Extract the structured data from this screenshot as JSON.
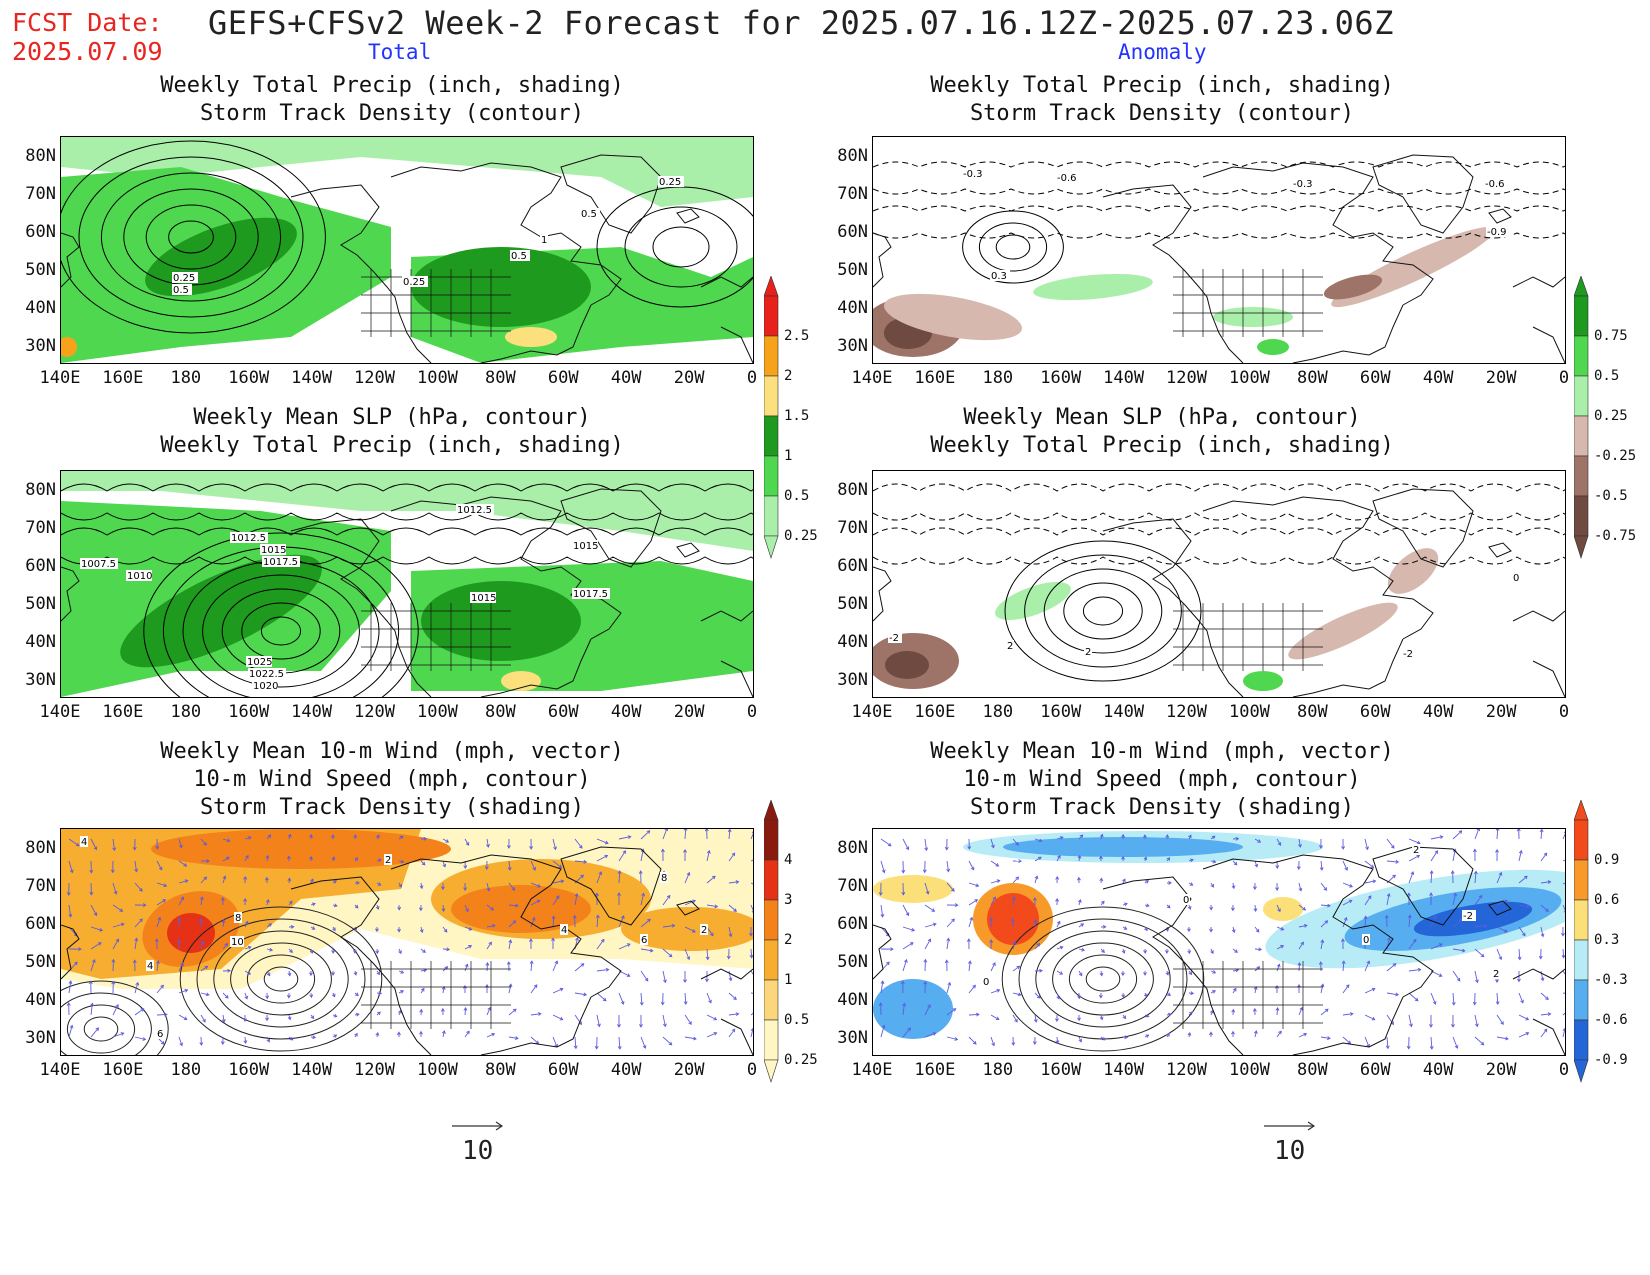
{
  "header": {
    "fcst_label": "FCST Date:",
    "fcst_date": "2025.07.09",
    "title": "GEFS+CFSv2 Week-2 Forecast for 2025.07.16.12Z-2025.07.23.06Z",
    "col_total": "Total",
    "col_anomaly": "Anomaly"
  },
  "axes": {
    "lat_labels": [
      "80N",
      "70N",
      "60N",
      "50N",
      "40N",
      "30N"
    ],
    "lon_labels": [
      "140E",
      "160E",
      "180",
      "160W",
      "140W",
      "120W",
      "100W",
      "80W",
      "60W",
      "40W",
      "20W",
      "0"
    ]
  },
  "panels": {
    "row1": {
      "line1": "Weekly Total Precip (inch, shading)",
      "line2": "Storm Track Density (contour)"
    },
    "row2": {
      "line1": "Weekly Mean SLP (hPa, contour)",
      "line2": "Weekly Total Precip (inch, shading)"
    },
    "row3": {
      "line1": "Weekly Mean 10-m Wind (mph, vector)",
      "line2": "10-m Wind Speed (mph, contour)",
      "line3": "Storm Track Density (shading)"
    }
  },
  "colorbars": {
    "precip_total": {
      "labels": [
        "2.5",
        "2",
        "1.5",
        "1",
        "0.5",
        "0.25"
      ],
      "colors": [
        "#e8211a",
        "#f7a21b",
        "#fbe07d",
        "#1e9a1e",
        "#4fd84f",
        "#a9eea9"
      ]
    },
    "precip_anom": {
      "labels": [
        "0.75",
        "0.5",
        "0.25",
        "-0.25",
        "-0.5",
        "-0.75"
      ],
      "colors": [
        "#1e9a1e",
        "#4fd84f",
        "#a9eea9",
        "#d6b8ae",
        "#9e7468",
        "#6e4a40"
      ]
    },
    "storm_total": {
      "labels": [
        "4",
        "3",
        "2",
        "1",
        "0.5",
        "0.25"
      ],
      "colors": [
        "#8b1a0e",
        "#e53217",
        "#f4821b",
        "#f7ad2f",
        "#fbd67a",
        "#fff6c4"
      ]
    },
    "storm_anom": {
      "labels": [
        "0.9",
        "0.6",
        "0.3",
        "-0.3",
        "-0.6",
        "-0.9"
      ],
      "colors": [
        "#f24a1a",
        "#f89a2a",
        "#fbe07a",
        "#b7ecf7",
        "#56aef0",
        "#2466d8"
      ]
    }
  },
  "contour_labels": {
    "p1": [
      "0.25",
      "0.5",
      "1",
      "0.5",
      "0.25",
      "0.5",
      "0.25"
    ],
    "p2": [
      "0.3",
      "-0.3",
      "-0.6",
      "-0.3",
      "-0.6",
      "-0.9"
    ],
    "p3": [
      "1012.5",
      "1015",
      "1017.5",
      "1007.5",
      "1010",
      "1012.5",
      "1015",
      "1015",
      "1017.5",
      "1025",
      "1022.5",
      "1020"
    ],
    "p4": [
      "0",
      "2",
      "-2",
      "2",
      "-2"
    ],
    "p5": [
      "4",
      "2",
      "4",
      "8",
      "10",
      "6",
      "4",
      "6",
      "8",
      "2"
    ],
    "p6": [
      "2",
      "0",
      "0",
      "-2",
      "0",
      "2"
    ]
  },
  "wind_scale": {
    "value": "10"
  }
}
